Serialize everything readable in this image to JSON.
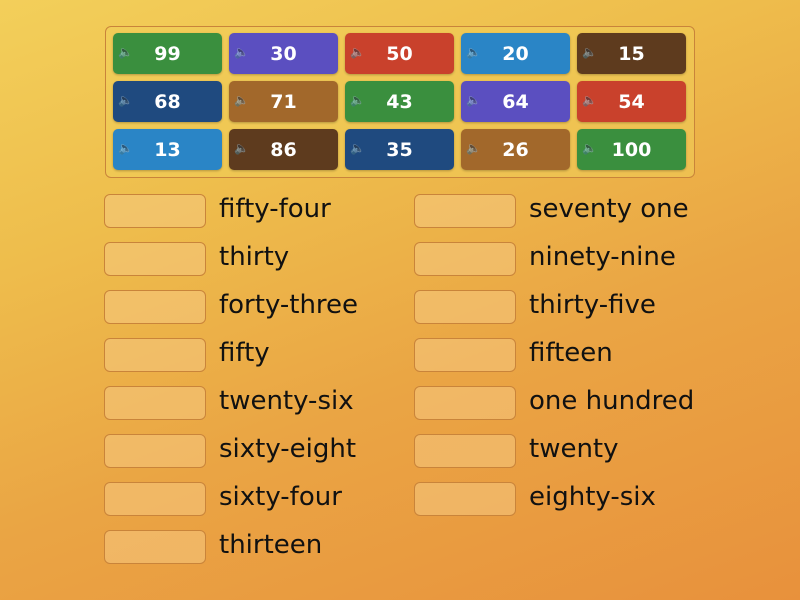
{
  "colors": {
    "green": "#3a8f3e",
    "purple": "#5b4fc0",
    "red": "#c9412c",
    "lightblue": "#2a85c6",
    "darkbrown": "#5e3b1e",
    "navy": "#1f4a7f",
    "brown": "#a2682b"
  },
  "tiles": [
    {
      "text": "99",
      "color": "green"
    },
    {
      "text": "30",
      "color": "purple"
    },
    {
      "text": "50",
      "color": "red"
    },
    {
      "text": "20",
      "color": "lightblue"
    },
    {
      "text": "15",
      "color": "darkbrown"
    },
    {
      "text": "68",
      "color": "navy"
    },
    {
      "text": "71",
      "color": "brown"
    },
    {
      "text": "43",
      "color": "green"
    },
    {
      "text": "64",
      "color": "purple"
    },
    {
      "text": "54",
      "color": "red"
    },
    {
      "text": "13",
      "color": "lightblue"
    },
    {
      "text": "86",
      "color": "darkbrown"
    },
    {
      "text": "35",
      "color": "navy"
    },
    {
      "text": "26",
      "color": "brown"
    },
    {
      "text": "100",
      "color": "green"
    }
  ],
  "tile_icon": "speaker-icon",
  "left_targets": [
    "fifty-four",
    "thirty",
    "forty-three",
    "fifty",
    "twenty-six",
    "sixty-eight",
    "sixty-four",
    "thirteen"
  ],
  "right_targets": [
    "seventy one",
    "ninety-nine",
    "thirty-five",
    "fifteen",
    "one hundred",
    "twenty",
    "eighty-six"
  ]
}
